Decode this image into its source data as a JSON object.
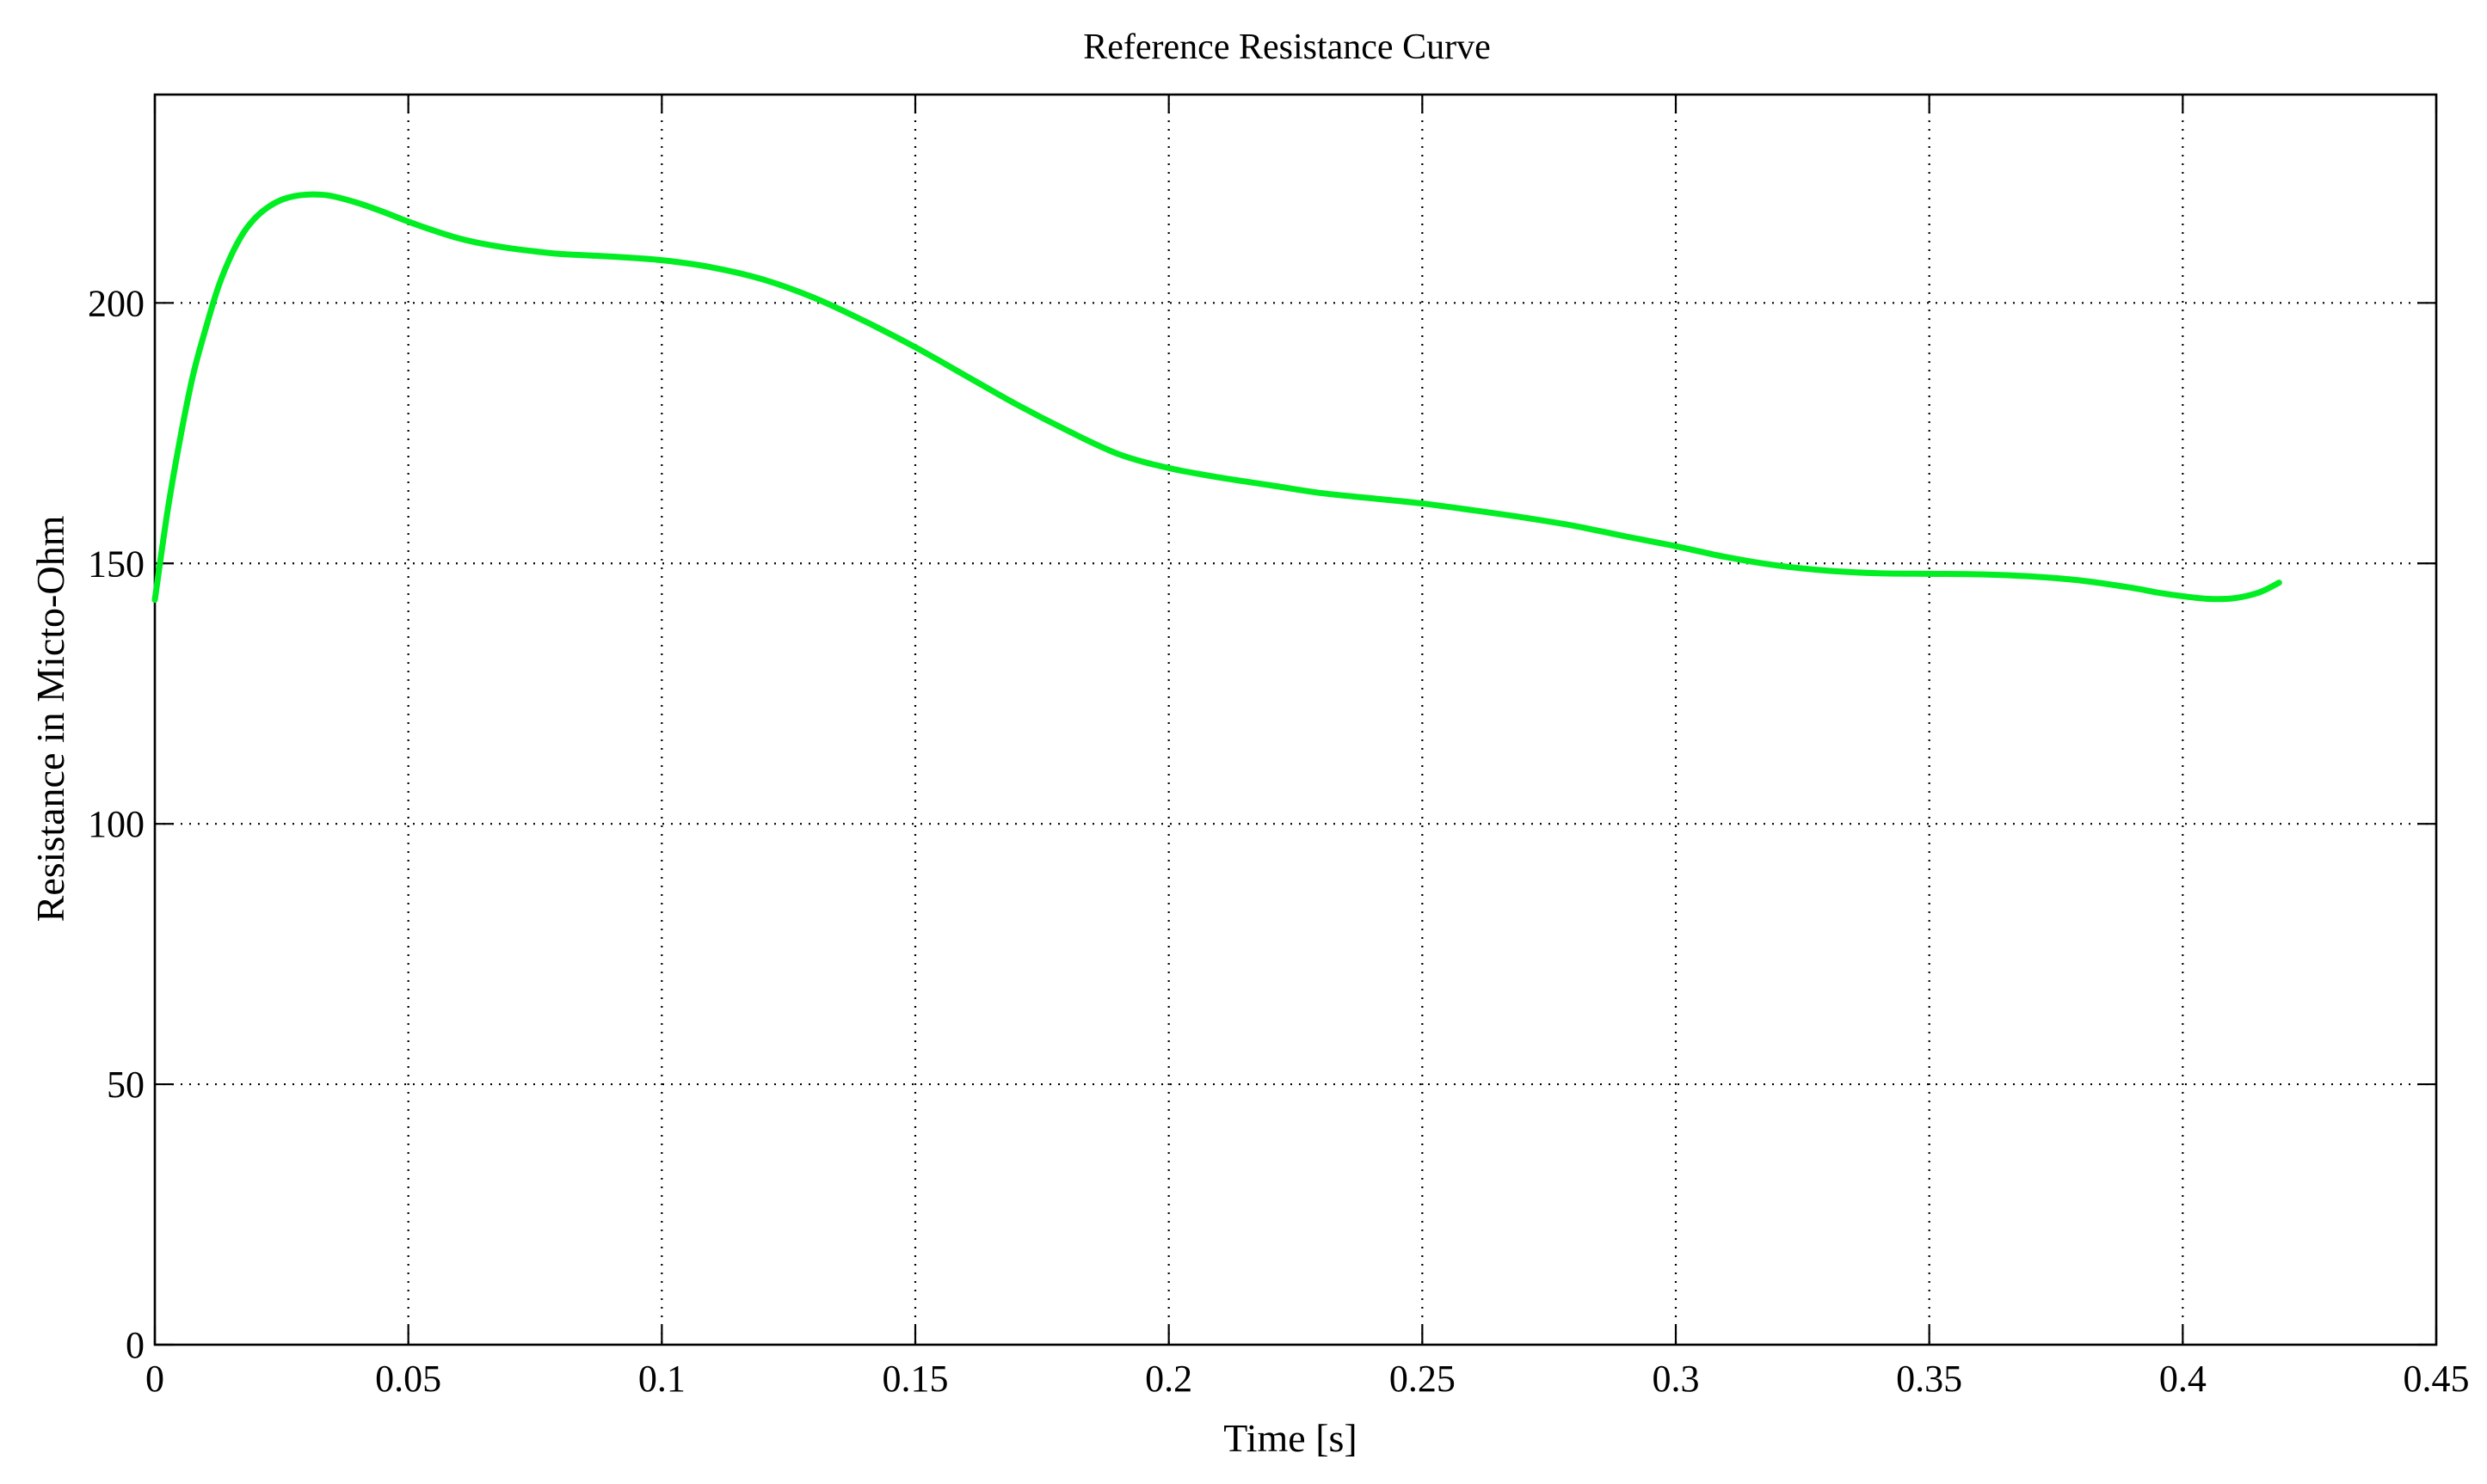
{
  "chart_data": {
    "type": "line",
    "title": "Reference Resistance Curve",
    "xlabel": "Time [s]",
    "ylabel": "Resistance in Micto-Ohm",
    "xlim": [
      0,
      0.45
    ],
    "ylim": [
      0,
      240
    ],
    "xticks": [
      0,
      0.05,
      0.1,
      0.15,
      0.2,
      0.25,
      0.3,
      0.35,
      0.4,
      0.45
    ],
    "xtick_labels": [
      "0",
      "0.05",
      "0.1",
      "0.15",
      "0.2",
      "0.25",
      "0.3",
      "0.35",
      "0.4",
      "0.45"
    ],
    "yticks": [
      0,
      50,
      100,
      150,
      200
    ],
    "ytick_labels": [
      "0",
      "50",
      "100",
      "150",
      "200"
    ],
    "grid": true,
    "legend": false,
    "series": [
      {
        "color": "#00ee22",
        "x": [
          0,
          0.0025,
          0.005,
          0.0075,
          0.01,
          0.0125,
          0.015,
          0.0175,
          0.02,
          0.0225,
          0.025,
          0.0275,
          0.03,
          0.0325,
          0.035,
          0.04,
          0.045,
          0.05,
          0.055,
          0.06,
          0.065,
          0.07,
          0.075,
          0.08,
          0.09,
          0.1,
          0.11,
          0.12,
          0.13,
          0.14,
          0.15,
          0.16,
          0.17,
          0.18,
          0.19,
          0.2,
          0.21,
          0.22,
          0.23,
          0.24,
          0.25,
          0.26,
          0.27,
          0.28,
          0.29,
          0.3,
          0.31,
          0.32,
          0.33,
          0.34,
          0.35,
          0.36,
          0.37,
          0.38,
          0.39,
          0.395,
          0.4,
          0.405,
          0.41,
          0.415,
          0.419
        ],
        "y": [
          143,
          160,
          174,
          186,
          195,
          203,
          209,
          213.5,
          216.5,
          218.5,
          219.8,
          220.5,
          220.8,
          220.8,
          220.5,
          219.2,
          217.5,
          215.6,
          213.9,
          212.4,
          211.3,
          210.5,
          209.9,
          209.4,
          208.9,
          208.2,
          206.8,
          204.5,
          201.0,
          196.5,
          191.5,
          186.0,
          180.5,
          175.5,
          171.0,
          168.3,
          166.5,
          165.0,
          163.5,
          162.5,
          161.5,
          160.2,
          158.8,
          157.2,
          155.2,
          153.3,
          151.2,
          149.6,
          148.6,
          148.1,
          148.0,
          147.9,
          147.5,
          146.7,
          145.3,
          144.4,
          143.7,
          143.2,
          143.3,
          144.4,
          146.3
        ]
      }
    ]
  }
}
